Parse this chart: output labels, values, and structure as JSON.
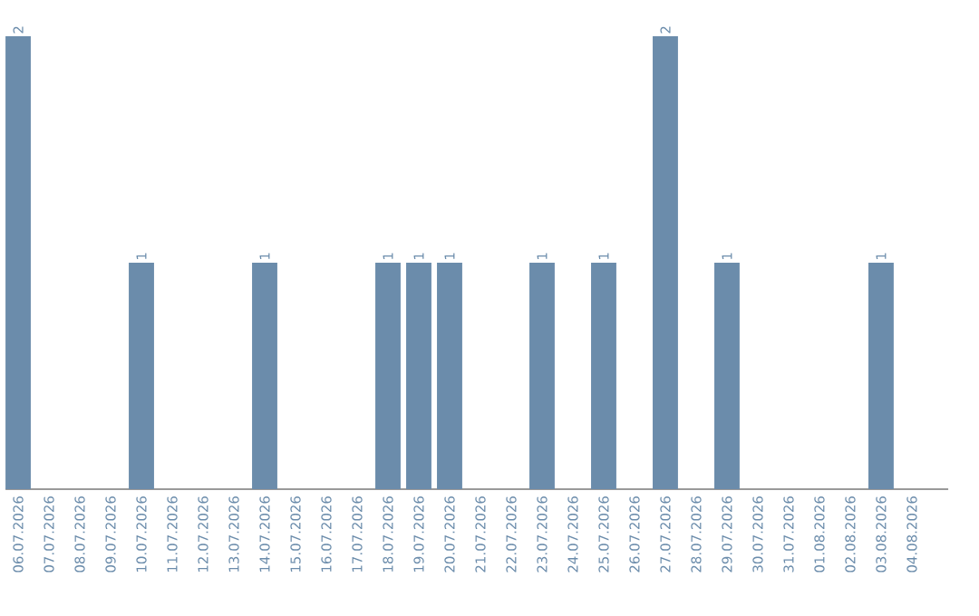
{
  "chart_data": {
    "type": "bar",
    "categories": [
      "06.07.2026",
      "07.07.2026",
      "08.07.2026",
      "09.07.2026",
      "10.07.2026",
      "11.07.2026",
      "12.07.2026",
      "13.07.2026",
      "14.07.2026",
      "15.07.2026",
      "16.07.2026",
      "17.07.2026",
      "18.07.2026",
      "19.07.2026",
      "20.07.2026",
      "21.07.2026",
      "22.07.2026",
      "23.07.2026",
      "24.07.2026",
      "25.07.2026",
      "26.07.2026",
      "27.07.2026",
      "28.07.2026",
      "29.07.2026",
      "30.07.2026",
      "31.07.2026",
      "01.08.2026",
      "02.08.2026",
      "03.08.2026",
      "04.08.2026"
    ],
    "values": [
      2,
      0,
      0,
      0,
      1,
      0,
      0,
      0,
      1,
      0,
      0,
      0,
      1,
      1,
      1,
      0,
      0,
      1,
      0,
      1,
      0,
      2,
      0,
      1,
      0,
      0,
      0,
      0,
      1,
      0
    ],
    "value_labels": [
      "2",
      null,
      null,
      null,
      "1",
      null,
      null,
      null,
      "1",
      null,
      null,
      null,
      "1",
      "1",
      "1",
      null,
      null,
      "1",
      null,
      "1",
      null,
      "2",
      null,
      "1",
      null,
      null,
      null,
      null,
      "1",
      null
    ],
    "color": "#6b8cab"
  }
}
